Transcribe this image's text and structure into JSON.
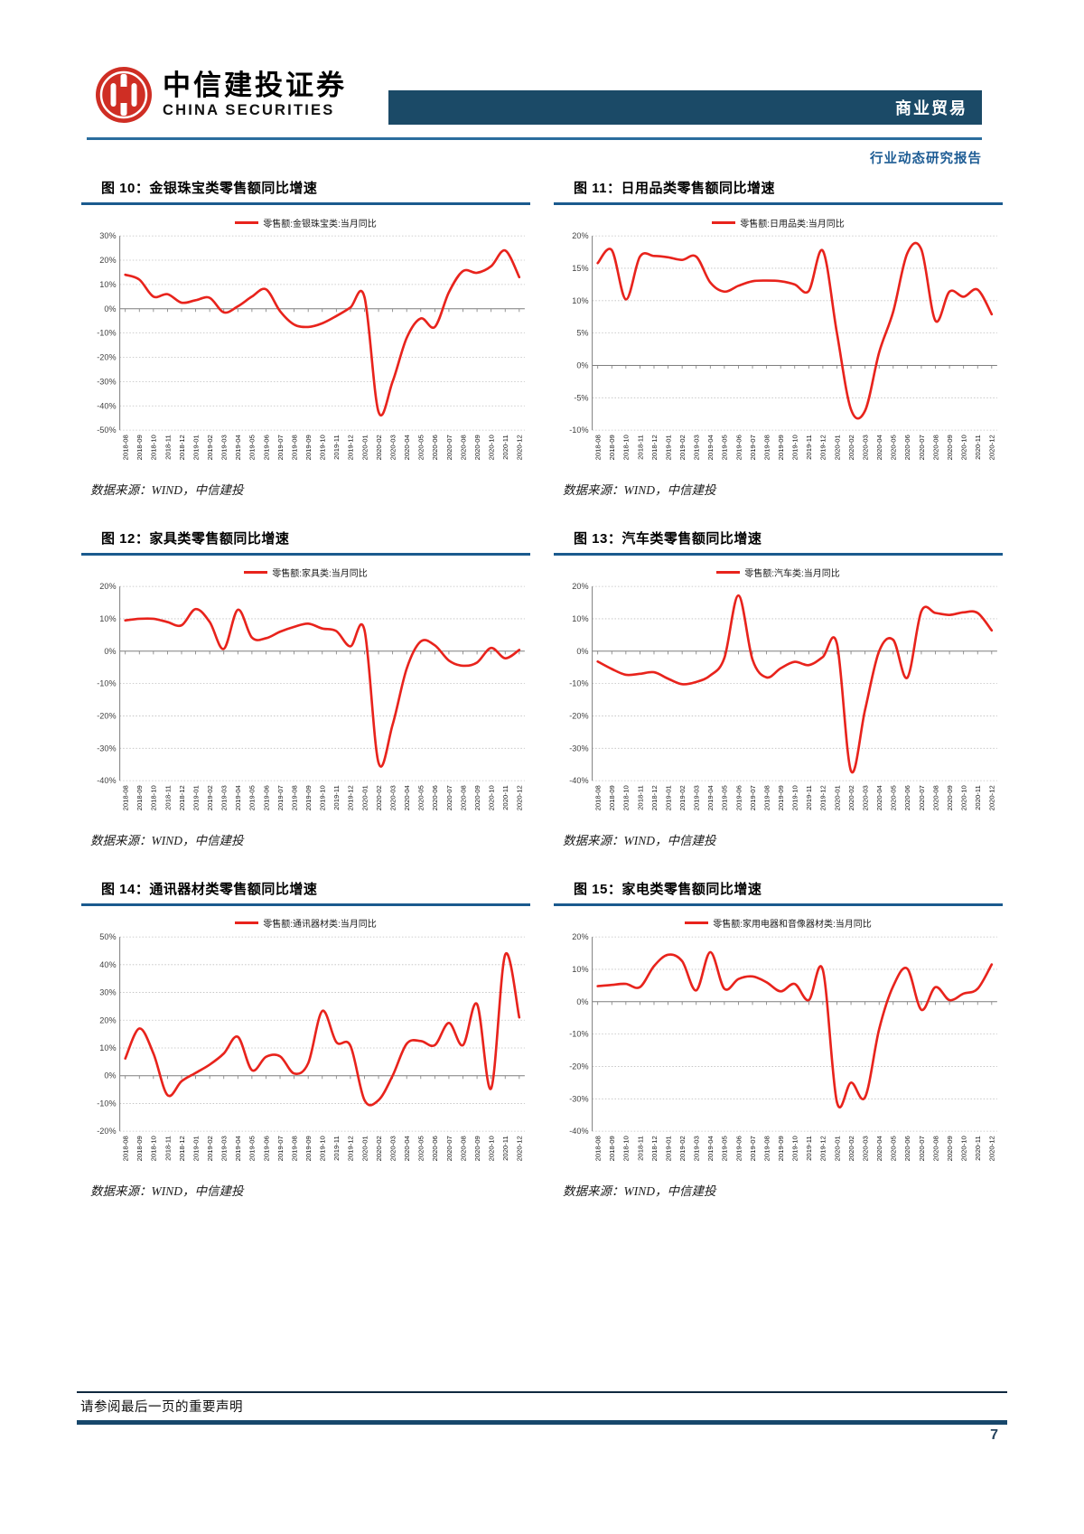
{
  "header": {
    "logo_cn": "中信建投证券",
    "logo_en": "CHINA SECURITIES",
    "sector_badge": "商业贸易",
    "report_type": "行业动态研究报告"
  },
  "months": [
    "2018-08",
    "2018-09",
    "2018-10",
    "2018-11",
    "2018-12",
    "2019-01",
    "2019-02",
    "2019-03",
    "2019-04",
    "2019-05",
    "2019-06",
    "2019-07",
    "2019-08",
    "2019-09",
    "2019-10",
    "2019-11",
    "2019-12",
    "2020-01",
    "2020-02",
    "2020-03",
    "2020-04",
    "2020-05",
    "2020-06",
    "2020-07",
    "2020-08",
    "2020-09",
    "2020-10",
    "2020-11",
    "2020-12"
  ],
  "chart_data": [
    {
      "type": "line",
      "title": "图 10：金银珠宝类零售额同比增速",
      "legend": "零售额:金银珠宝类:当月同比",
      "source": "数据来源：WIND，中信建投",
      "ymin": -50,
      "ymax": 30,
      "ystep": 10,
      "grid": true,
      "legend_position": "top",
      "values": [
        14,
        12,
        5,
        6,
        2.5,
        3.5,
        4.5,
        -1.5,
        1,
        5,
        8,
        -1,
        -6.5,
        -7.5,
        -6,
        -3,
        0.5,
        4.8,
        -42.5,
        -30,
        -12,
        -4,
        -7.5,
        6.8,
        15.5,
        14.8,
        17.5,
        24,
        13
      ]
    },
    {
      "type": "line",
      "title": "图 11：日用品类零售额同比增速",
      "legend": "零售额:日用品类:当月同比",
      "source": "数据来源：WIND，中信建投",
      "ymin": -10,
      "ymax": 20,
      "ystep": 5,
      "grid": true,
      "legend_position": "top",
      "values": [
        15.8,
        17.8,
        10.2,
        16.8,
        16.9,
        16.7,
        16.3,
        16.8,
        12.8,
        11.4,
        12.3,
        13,
        13.1,
        13,
        12.5,
        11.5,
        17.7,
        5,
        -6.8,
        -7,
        2,
        8.3,
        17.3,
        17.9,
        6.9,
        11.4,
        10.6,
        11.7,
        7.9
      ]
    },
    {
      "type": "line",
      "title": "图 12：家具类零售额同比增速",
      "legend": "零售额:家具类:当月同比",
      "source": "数据来源：WIND，中信建投",
      "ymin": -40,
      "ymax": 20,
      "ystep": 10,
      "grid": true,
      "legend_position": "top",
      "values": [
        9.5,
        10,
        10,
        9,
        8,
        13,
        9,
        0.7,
        12.8,
        4.2,
        4,
        6,
        7.5,
        8.5,
        7,
        6.2,
        1.5,
        6.5,
        -34.5,
        -22.7,
        -5.4,
        3,
        1.8,
        -2.9,
        -4.5,
        -3.5,
        1,
        -2.2,
        0.4
      ]
    },
    {
      "type": "line",
      "title": "图 13：汽车类零售额同比增速",
      "legend": "零售额:汽车类:当月同比",
      "source": "数据来源：WIND，中信建投",
      "ymin": -40,
      "ymax": 20,
      "ystep": 10,
      "grid": true,
      "legend_position": "top",
      "values": [
        -3.2,
        -5.5,
        -7.3,
        -7,
        -6.5,
        -8.5,
        -10.2,
        -9.5,
        -7.5,
        -2.1,
        17.2,
        -2.6,
        -8.1,
        -5.3,
        -3.3,
        -4.3,
        -1.8,
        2.3,
        -37,
        -18.1,
        0,
        3.5,
        -8.2,
        12.3,
        11.8,
        11.2,
        12,
        11.8,
        6.4
      ]
    },
    {
      "type": "line",
      "title": "图 14：通讯器材类零售额同比增速",
      "legend": "零售额:通讯器材类:当月同比",
      "source": "数据来源：WIND，中信建投",
      "ymin": -20,
      "ymax": 50,
      "ystep": 10,
      "grid": true,
      "legend_position": "top",
      "values": [
        6.2,
        17,
        8,
        -7,
        -2,
        1,
        4,
        8,
        14,
        2,
        6.8,
        7,
        0.8,
        4.5,
        23.3,
        12.1,
        10.8,
        -8.8,
        -8.8,
        0,
        11.5,
        12.5,
        11,
        19,
        11,
        25.8,
        -4.6,
        43.6,
        21
      ]
    },
    {
      "type": "line",
      "title": "图 15：家电类零售额同比增速",
      "legend": "零售额:家用电器和音像器材类:当月同比",
      "source": "数据来源：WIND，中信建投",
      "ymin": -40,
      "ymax": 20,
      "ystep": 10,
      "grid": true,
      "legend_position": "top",
      "values": [
        4.8,
        5.2,
        5.5,
        4.5,
        11,
        14.5,
        12.5,
        3.5,
        15.3,
        4,
        7,
        7.8,
        6,
        3.2,
        5.5,
        0.5,
        9.8,
        -31,
        -25,
        -29.5,
        -8.5,
        4.8,
        10.2,
        -2.5,
        4.5,
        0.5,
        2.5,
        4,
        11.5
      ]
    }
  ],
  "colors": {
    "line_red": "#e8231c",
    "header_bar": "#1b4a67",
    "title_rule": "#1a5a8e",
    "grid_gray": "#bfbfbf",
    "axis_gray": "#7f7f7f",
    "label_gray": "#404040"
  },
  "footer": {
    "disclaimer": "请参阅最后一页的重要声明",
    "page_number": "7"
  }
}
